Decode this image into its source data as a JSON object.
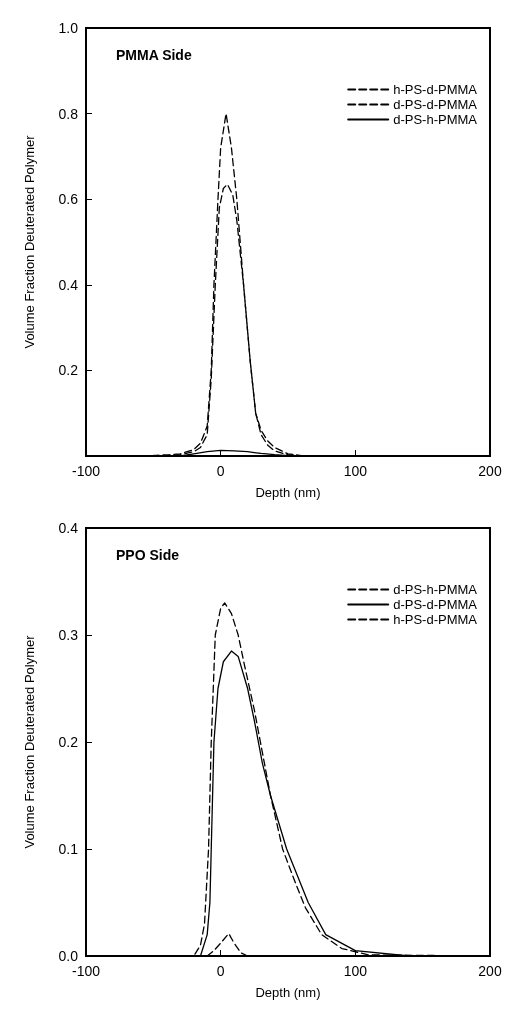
{
  "chart_data": [
    {
      "type": "line",
      "annotations": [
        "PMMA Side"
      ],
      "xlabel": "Depth (nm)",
      "ylabel": "Volume Fraction Deuterated Polymer",
      "xlim": [
        -100,
        200
      ],
      "xticks": [
        -100,
        0,
        100,
        200
      ],
      "ylim": [
        0,
        1
      ],
      "yticks": [
        0.2,
        0.4,
        0.6,
        0.8,
        {
          "value": 1,
          "label": "1.0"
        }
      ],
      "grid": false,
      "legend": "top right",
      "marker": "none",
      "series": [
        {
          "name": "h-PS-d-PMMA",
          "color": "#000000",
          "line_style": "dashed",
          "x": [
            -100,
            -60,
            -40,
            -30,
            -20,
            -15,
            -10,
            -7,
            -5,
            -2,
            0,
            4,
            8,
            12,
            17,
            22,
            26,
            30,
            35,
            40,
            50,
            60,
            200
          ],
          "values": [
            0,
            0,
            0.002,
            0.005,
            0.015,
            0.03,
            0.07,
            0.2,
            0.4,
            0.6,
            0.72,
            0.8,
            0.72,
            0.6,
            0.4,
            0.22,
            0.1,
            0.06,
            0.035,
            0.02,
            0.005,
            0.001,
            0
          ]
        },
        {
          "name": "d-PS-d-PMMA",
          "color": "#000000",
          "line_style": "dashed",
          "x": [
            -100,
            -60,
            -30,
            -20,
            -15,
            -10,
            -7,
            -4,
            -1,
            2,
            5,
            9,
            12,
            17,
            22,
            26,
            30,
            35,
            40,
            50,
            60,
            200
          ],
          "values": [
            0,
            0,
            0.003,
            0.01,
            0.02,
            0.05,
            0.18,
            0.4,
            0.58,
            0.625,
            0.635,
            0.61,
            0.55,
            0.4,
            0.22,
            0.1,
            0.05,
            0.025,
            0.012,
            0.003,
            0,
            0
          ]
        },
        {
          "name": "d-PS-h-PMMA",
          "color": "#000000",
          "line_style": "solid",
          "x": [
            -100,
            -60,
            -30,
            -20,
            -10,
            0,
            10,
            20,
            30,
            40,
            50,
            60,
            200
          ],
          "values": [
            0,
            0,
            0,
            0.005,
            0.01,
            0.013,
            0.012,
            0.01,
            0.006,
            0.003,
            0.001,
            0,
            0
          ]
        }
      ]
    },
    {
      "type": "line",
      "annotations": [
        "PPO Side"
      ],
      "xlabel": "Depth (nm)",
      "ylabel": "Volume Fraction Deuterated Polymer",
      "xlim": [
        -100,
        200
      ],
      "xticks": [
        -100,
        0,
        100,
        200
      ],
      "ylim": [
        0,
        0.4
      ],
      "yticks": [
        {
          "value": 0,
          "label": "0.0"
        },
        0.1,
        0.2,
        0.3,
        0.4
      ],
      "grid": false,
      "legend": "top right",
      "marker": "none",
      "series": [
        {
          "name": "d-PS-h-PMMA",
          "color": "#000000",
          "line_style": "dashed",
          "x": [
            -100,
            -20,
            -15,
            -12,
            -9,
            -7,
            -4,
            0,
            3,
            8,
            13,
            18,
            25,
            31,
            37,
            46,
            55,
            63,
            75,
            90,
            110,
            200
          ],
          "values": [
            0,
            0,
            0.01,
            0.03,
            0.1,
            0.2,
            0.3,
            0.325,
            0.33,
            0.32,
            0.3,
            0.27,
            0.23,
            0.19,
            0.15,
            0.1,
            0.07,
            0.045,
            0.02,
            0.007,
            0.001,
            0
          ]
        },
        {
          "name": "d-PS-d-PMMA",
          "color": "#000000",
          "line_style": "solid",
          "x": [
            -100,
            -15,
            -10,
            -8,
            -7,
            -5,
            -2,
            2,
            8,
            13,
            20,
            25,
            31,
            37,
            49,
            65,
            78,
            100,
            140,
            200
          ],
          "values": [
            0,
            0,
            0.02,
            0.05,
            0.1,
            0.2,
            0.25,
            0.275,
            0.285,
            0.28,
            0.25,
            0.22,
            0.18,
            0.15,
            0.1,
            0.05,
            0.02,
            0.005,
            0,
            0
          ]
        },
        {
          "name": "h-PS-d-PMMA",
          "color": "#000000",
          "line_style": "dashed",
          "x": [
            -100,
            -20,
            -10,
            -5,
            0,
            6,
            10,
            15,
            20,
            200
          ],
          "values": [
            0,
            0,
            0,
            0.005,
            0.012,
            0.021,
            0.012,
            0.003,
            0,
            0
          ]
        }
      ]
    }
  ]
}
